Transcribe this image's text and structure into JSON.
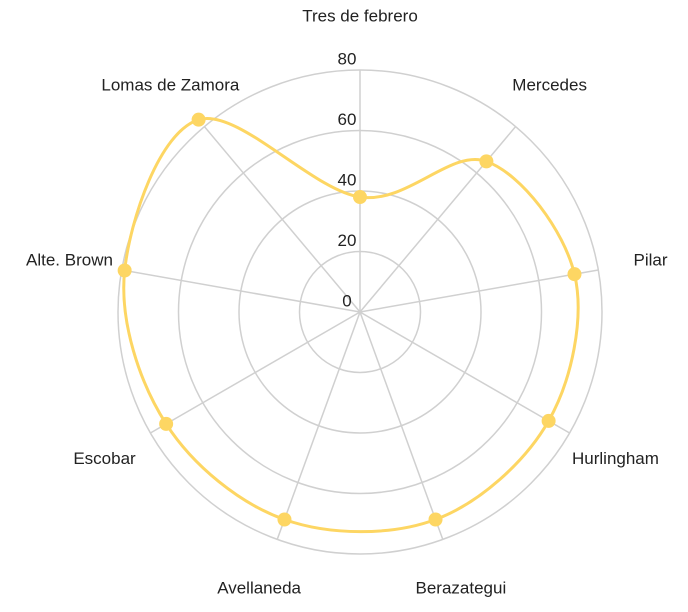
{
  "chart_data": {
    "type": "radar",
    "categories": [
      "Tres de febrero",
      "Mercedes",
      "Pilar",
      "Hurlingham",
      "Berazategui",
      "Avellaneda",
      "Escobar",
      "Alte. Brown",
      "Lomas de Zamora"
    ],
    "values": [
      38,
      65,
      72,
      72,
      73,
      73,
      74,
      79,
      83
    ],
    "color": "#fdd663",
    "ylim": [
      0,
      80
    ],
    "yticks": [
      0,
      20,
      40,
      60,
      80
    ],
    "grid": true
  }
}
